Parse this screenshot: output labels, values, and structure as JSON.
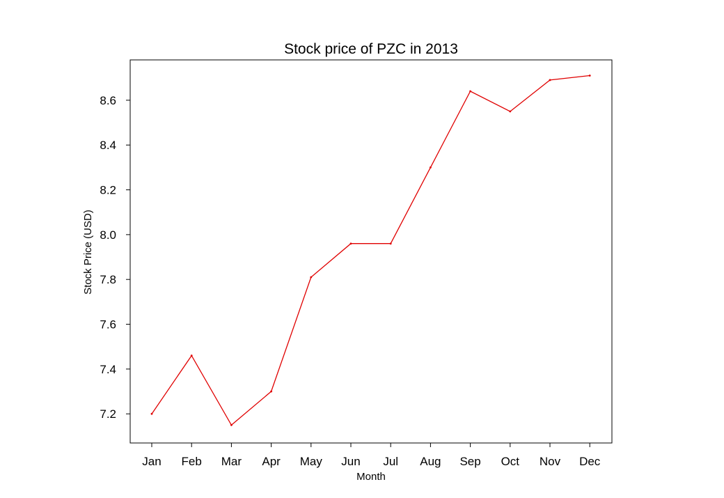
{
  "chart_data": {
    "type": "line",
    "title": "Stock price of PZC in 2013",
    "xlabel": "Month",
    "ylabel": "Stock Price (USD)",
    "categories": [
      "Jan",
      "Feb",
      "Mar",
      "Apr",
      "May",
      "Jun",
      "Jul",
      "Aug",
      "Sep",
      "Oct",
      "Nov",
      "Dec"
    ],
    "series": [
      {
        "values": [
          7.2,
          7.46,
          7.15,
          7.3,
          7.81,
          7.96,
          7.96,
          8.3,
          8.64,
          8.55,
          8.69,
          8.71
        ],
        "color": "#e00000"
      }
    ],
    "ylim": [
      7.07,
      8.78
    ],
    "yticks": [
      7.2,
      7.4,
      7.6,
      7.8,
      8.0,
      8.2,
      8.4,
      8.6
    ],
    "ytick_labels": [
      "7.2",
      "7.4",
      "7.6",
      "7.8",
      "8.0",
      "8.2",
      "8.4",
      "8.6"
    ],
    "grid": false
  }
}
